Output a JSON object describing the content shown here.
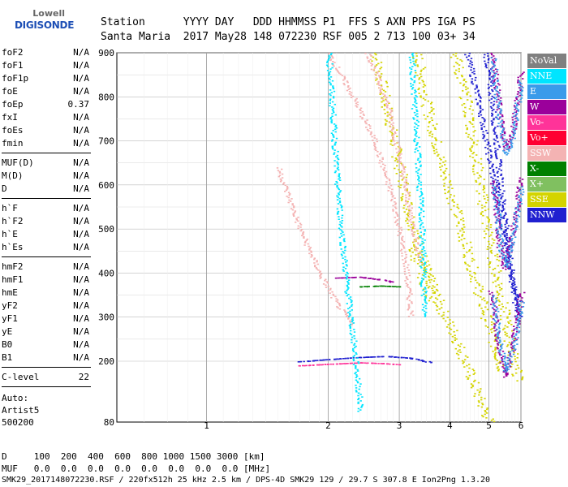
{
  "logo": {
    "line1": "Lowell",
    "line2": "DIGISONDE"
  },
  "header": {
    "labels": "Station      YYYY DAY   DDD HHMMSS P1  FFS S AXN PPS IGA PS",
    "values": "Santa Maria  2017 May28 148 072230 RSF 005 2 713 100 03+ 34"
  },
  "params": {
    "g1": [
      {
        "k": "foF2",
        "v": "N/A"
      },
      {
        "k": "foF1",
        "v": "N/A"
      },
      {
        "k": "foF1p",
        "v": "N/A"
      },
      {
        "k": "foE",
        "v": "N/A"
      },
      {
        "k": "foEp",
        "v": "0.37"
      },
      {
        "k": "fxI",
        "v": "N/A"
      },
      {
        "k": "foEs",
        "v": "N/A"
      },
      {
        "k": "fmin",
        "v": "N/A"
      }
    ],
    "g2": [
      {
        "k": "MUF(D)",
        "v": "N/A"
      },
      {
        "k": "M(D)",
        "v": "N/A"
      },
      {
        "k": "D",
        "v": "N/A"
      }
    ],
    "g3": [
      {
        "k": "h`F",
        "v": "N/A"
      },
      {
        "k": "h`F2",
        "v": "N/A"
      },
      {
        "k": "h`E",
        "v": "N/A"
      },
      {
        "k": "h`Es",
        "v": "N/A"
      }
    ],
    "g4": [
      {
        "k": "hmF2",
        "v": "N/A"
      },
      {
        "k": "hmF1",
        "v": "N/A"
      },
      {
        "k": "hmE",
        "v": "N/A"
      },
      {
        "k": "yF2",
        "v": "N/A"
      },
      {
        "k": "yF1",
        "v": "N/A"
      },
      {
        "k": "yE",
        "v": "N/A"
      },
      {
        "k": "B0",
        "v": "N/A"
      },
      {
        "k": "B1",
        "v": "N/A"
      }
    ],
    "clevel": {
      "k": "C-level",
      "v": "22"
    },
    "auto": [
      "Auto:",
      "Artist5",
      "500200"
    ]
  },
  "legend": [
    {
      "label": "NoVal",
      "color": "#808080"
    },
    {
      "label": "NNE",
      "color": "#00e5ff"
    },
    {
      "label": "E",
      "color": "#3a9bea"
    },
    {
      "label": "W",
      "color": "#9b009b"
    },
    {
      "label": "Vo-",
      "color": "#ff3399"
    },
    {
      "label": "Vo+",
      "color": "#ff0033"
    },
    {
      "label": "SSW",
      "color": "#f4b3b3"
    },
    {
      "label": "X-",
      "color": "#008000"
    },
    {
      "label": "X+",
      "color": "#80c060"
    },
    {
      "label": "SSE",
      "color": "#d4d400"
    },
    {
      "label": "NNW",
      "color": "#2020d0"
    }
  ],
  "footer": {
    "d_row": "D     100  200  400  600  800 1000 1500 3000 [km]",
    "muf_row": "MUF   0.0  0.0  0.0  0.0  0.0  0.0  0.0  0.0 [MHz]",
    "info": "SMK29_2017148072230.RSF / 220fx512h 25 kHz 2.5 km / DPS-4D SMK29 129 / 29.7 S 307.8 E Ion2Png 1.3.20"
  },
  "chart_data": {
    "type": "scatter",
    "x_ticks": [
      "1",
      "2",
      "3",
      "4",
      "5",
      "6"
    ],
    "y_ticks": [
      "80",
      "200",
      "300",
      "400",
      "500",
      "600",
      "700",
      "800",
      "900"
    ],
    "xlim": [
      0.6,
      6.0
    ],
    "ylim": [
      80,
      900
    ],
    "x_scale": "log",
    "grid": true,
    "legend_position": "right",
    "traces": [
      {
        "color": "SSE",
        "points": [
          [
            2.6,
            900
          ],
          [
            2.9,
            700
          ],
          [
            3.2,
            520
          ],
          [
            3.5,
            400
          ],
          [
            3.8,
            320
          ],
          [
            4.1,
            260
          ],
          [
            4.4,
            190
          ],
          [
            4.7,
            130
          ],
          [
            5.0,
            80
          ]
        ]
      },
      {
        "color": "SSE",
        "points": [
          [
            3.3,
            900
          ],
          [
            3.5,
            780
          ],
          [
            3.8,
            650
          ],
          [
            4.2,
            520
          ],
          [
            4.5,
            420
          ],
          [
            4.8,
            330
          ],
          [
            5.1,
            250
          ],
          [
            5.4,
            180
          ]
        ]
      },
      {
        "color": "SSE",
        "points": [
          [
            4.1,
            900
          ],
          [
            4.4,
            780
          ],
          [
            4.7,
            620
          ],
          [
            5.0,
            470
          ],
          [
            5.3,
            360
          ],
          [
            5.6,
            250
          ],
          [
            5.9,
            160
          ]
        ]
      },
      {
        "color": "SSE",
        "points": [
          [
            3.2,
            460
          ],
          [
            3.4,
            400
          ],
          [
            3.6,
            330
          ]
        ]
      },
      {
        "color": "NNW",
        "points": [
          [
            4.4,
            900
          ],
          [
            4.7,
            790
          ],
          [
            5.0,
            660
          ],
          [
            5.3,
            540
          ],
          [
            5.6,
            420
          ],
          [
            5.9,
            290
          ]
        ]
      },
      {
        "color": "NNW",
        "points": [
          [
            4.9,
            900
          ],
          [
            5.1,
            770
          ],
          [
            5.3,
            620
          ],
          [
            5.5,
            500
          ],
          [
            5.7,
            390
          ],
          [
            5.95,
            300
          ]
        ]
      },
      {
        "color": "NNW",
        "points": [
          [
            1.7,
            200
          ],
          [
            2.0,
            205
          ],
          [
            2.4,
            210
          ],
          [
            2.8,
            212
          ],
          [
            3.2,
            208
          ],
          [
            3.6,
            198
          ]
        ]
      },
      {
        "color": "W",
        "points": [
          [
            5.1,
            900
          ],
          [
            5.3,
            760
          ],
          [
            5.5,
            680
          ],
          [
            5.7,
            720
          ],
          [
            6.0,
            860
          ]
        ]
      },
      {
        "color": "W",
        "points": [
          [
            5.1,
            610
          ],
          [
            5.3,
            460
          ],
          [
            5.45,
            410
          ],
          [
            5.65,
            470
          ],
          [
            6.0,
            620
          ]
        ]
      },
      {
        "color": "W",
        "points": [
          [
            5.05,
            360
          ],
          [
            5.25,
            250
          ],
          [
            5.45,
            170
          ],
          [
            5.7,
            230
          ],
          [
            6.0,
            360
          ]
        ]
      },
      {
        "color": "E",
        "points": [
          [
            5.1,
            890
          ],
          [
            5.3,
            750
          ],
          [
            5.5,
            670
          ],
          [
            5.7,
            710
          ],
          [
            6.0,
            840
          ]
        ]
      },
      {
        "color": "E",
        "points": [
          [
            5.15,
            600
          ],
          [
            5.35,
            450
          ],
          [
            5.5,
            415
          ],
          [
            5.7,
            480
          ],
          [
            6.0,
            600
          ]
        ]
      },
      {
        "color": "E",
        "points": [
          [
            5.1,
            350
          ],
          [
            5.3,
            240
          ],
          [
            5.5,
            180
          ],
          [
            5.75,
            240
          ],
          [
            6.0,
            340
          ]
        ]
      },
      {
        "color": "SSW",
        "points": [
          [
            2.0,
            900
          ],
          [
            2.3,
            800
          ],
          [
            2.6,
            700
          ],
          [
            2.9,
            560
          ],
          [
            3.1,
            420
          ],
          [
            3.2,
            300
          ]
        ]
      },
      {
        "color": "SSW",
        "points": [
          [
            2.5,
            900
          ],
          [
            2.8,
            780
          ],
          [
            3.0,
            660
          ],
          [
            3.2,
            520
          ],
          [
            3.4,
            420
          ]
        ]
      },
      {
        "color": "SSW",
        "points": [
          [
            1.5,
            640
          ],
          [
            1.7,
            500
          ],
          [
            1.9,
            400
          ],
          [
            2.1,
            330
          ],
          [
            2.3,
            280
          ]
        ]
      },
      {
        "color": "Vo-",
        "points": [
          [
            1.7,
            192
          ],
          [
            2.0,
            195
          ],
          [
            2.4,
            198
          ],
          [
            2.8,
            196
          ],
          [
            3.0,
            194
          ]
        ]
      },
      {
        "color": "X-",
        "points": [
          [
            2.4,
            370
          ],
          [
            2.7,
            372
          ],
          [
            3.0,
            370
          ]
        ]
      },
      {
        "color": "W",
        "points": [
          [
            2.1,
            390
          ],
          [
            2.4,
            392
          ],
          [
            2.7,
            386
          ],
          [
            2.9,
            380
          ]
        ]
      },
      {
        "color": "NNE",
        "points": [
          [
            2.0,
            900
          ],
          [
            2.1,
            600
          ],
          [
            2.2,
            400
          ],
          [
            2.3,
            250
          ],
          [
            2.4,
            100
          ]
        ]
      },
      {
        "color": "NNE",
        "points": [
          [
            3.2,
            900
          ],
          [
            3.3,
            700
          ],
          [
            3.4,
            500
          ],
          [
            3.45,
            300
          ]
        ]
      }
    ]
  }
}
